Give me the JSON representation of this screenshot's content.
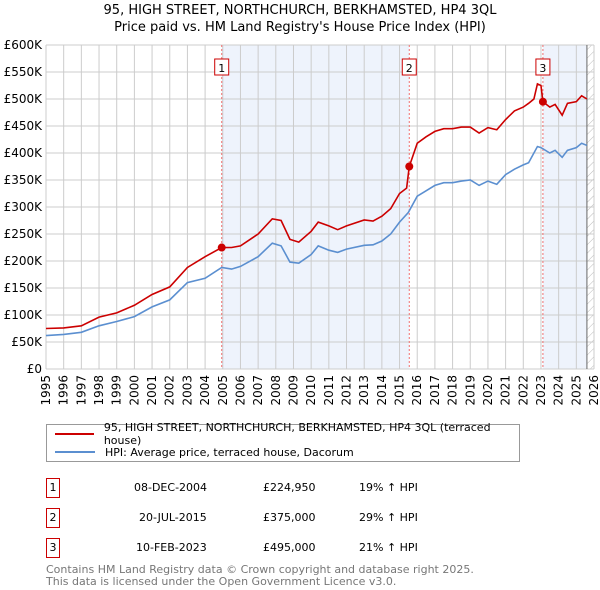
{
  "chart_data": {
    "type": "line",
    "title": "95, HIGH STREET, NORTHCHURCH, BERKHAMSTED, HP4 3QL",
    "subtitle": "Price paid vs. HM Land Registry's House Price Index (HPI)",
    "xlim": [
      1995,
      2026
    ],
    "ylim": [
      0,
      600000
    ],
    "x_ticks": [
      "1995",
      "1996",
      "1997",
      "1998",
      "1999",
      "2000",
      "2001",
      "2002",
      "2003",
      "2004",
      "2005",
      "2006",
      "2007",
      "2008",
      "2009",
      "2010",
      "2011",
      "2012",
      "2013",
      "2014",
      "2015",
      "2016",
      "2017",
      "2018",
      "2019",
      "2020",
      "2021",
      "2022",
      "2023",
      "2024",
      "2025",
      "2026"
    ],
    "y_ticks": [
      "£0",
      "£50K",
      "£100K",
      "£150K",
      "£200K",
      "£250K",
      "£300K",
      "£350K",
      "£400K",
      "£450K",
      "£500K",
      "£550K",
      "£600K"
    ],
    "grid": true,
    "series": [
      {
        "name": "95, HIGH STREET, NORTHCHURCH, BERKHAMSTED, HP4 3QL (terraced house)",
        "color": "#cc0000",
        "x": [
          1995,
          1996,
          1997,
          1998,
          1999,
          2000,
          2001,
          2002,
          2003,
          2004,
          2004.94,
          2005.5,
          2006,
          2007,
          2007.8,
          2008.3,
          2008.8,
          2009.3,
          2010,
          2010.4,
          2011,
          2011.5,
          2012,
          2013,
          2013.5,
          2014,
          2014.5,
          2015,
          2015.4,
          2015.55,
          2016,
          2016.5,
          2017,
          2017.5,
          2018,
          2018.5,
          2019,
          2019.5,
          2020,
          2020.5,
          2021,
          2021.5,
          2022,
          2022.3,
          2022.6,
          2022.8,
          2023,
          2023.11,
          2023.5,
          2023.8,
          2024.2,
          2024.5,
          2025,
          2025.3,
          2025.6
        ],
        "y": [
          75000,
          76000,
          80000,
          96000,
          104000,
          118000,
          138000,
          152000,
          188000,
          208000,
          224950,
          225000,
          228000,
          250000,
          278000,
          275000,
          240000,
          235000,
          255000,
          272000,
          265000,
          258000,
          265000,
          276000,
          274000,
          283000,
          297000,
          325000,
          335000,
          375000,
          418000,
          430000,
          440000,
          445000,
          445000,
          448000,
          448000,
          437000,
          447000,
          443000,
          462000,
          478000,
          485000,
          492000,
          500000,
          528000,
          525000,
          495000,
          485000,
          490000,
          470000,
          492000,
          495000,
          506000,
          500000
        ]
      },
      {
        "name": "HPI: Average price, terraced house, Dacorum",
        "color": "#5b8fd0",
        "x": [
          1995,
          1996,
          1997,
          1998,
          1999,
          2000,
          2001,
          2002,
          2003,
          2004,
          2004.94,
          2005.5,
          2006,
          2007,
          2007.8,
          2008.3,
          2008.8,
          2009.3,
          2010,
          2010.4,
          2011,
          2011.5,
          2012,
          2013,
          2013.5,
          2014,
          2014.5,
          2015,
          2015.5,
          2016,
          2016.5,
          2017,
          2017.5,
          2018,
          2018.5,
          2019,
          2019.5,
          2020,
          2020.5,
          2021,
          2021.5,
          2022,
          2022.3,
          2022.8,
          2023,
          2023.5,
          2023.8,
          2024.2,
          2024.5,
          2025,
          2025.3,
          2025.6
        ],
        "y": [
          62000,
          64000,
          68000,
          80000,
          88000,
          97000,
          115000,
          128000,
          160000,
          168000,
          188000,
          185000,
          190000,
          208000,
          233000,
          228000,
          198000,
          196000,
          212000,
          228000,
          220000,
          216000,
          222000,
          229000,
          230000,
          237000,
          250000,
          272000,
          290000,
          320000,
          330000,
          340000,
          345000,
          345000,
          348000,
          350000,
          340000,
          348000,
          342000,
          360000,
          370000,
          378000,
          382000,
          412000,
          410000,
          400000,
          405000,
          392000,
          405000,
          410000,
          418000,
          414000
        ]
      }
    ],
    "sales": [
      {
        "label": "1",
        "date": "08-DEC-2004",
        "x": 2004.94,
        "price": "£224,950",
        "value": 224950,
        "hpi": "19% ↑ HPI"
      },
      {
        "label": "2",
        "date": "20-JUL-2015",
        "x": 2015.55,
        "price": "£375,000",
        "value": 375000,
        "hpi": "29% ↑ HPI"
      },
      {
        "label": "3",
        "date": "10-FEB-2023",
        "x": 2023.11,
        "price": "£495,000",
        "value": 495000,
        "hpi": "21% ↑ HPI"
      }
    ],
    "shaded": [
      [
        2004.94,
        2015.55
      ],
      [
        2023.11,
        2025.6
      ]
    ],
    "hatched_from": 2025.6
  },
  "footer": {
    "line1": "Contains HM Land Registry data © Crown copyright and database right 2025.",
    "line2": "This data is licensed under the Open Government Licence v3.0."
  }
}
